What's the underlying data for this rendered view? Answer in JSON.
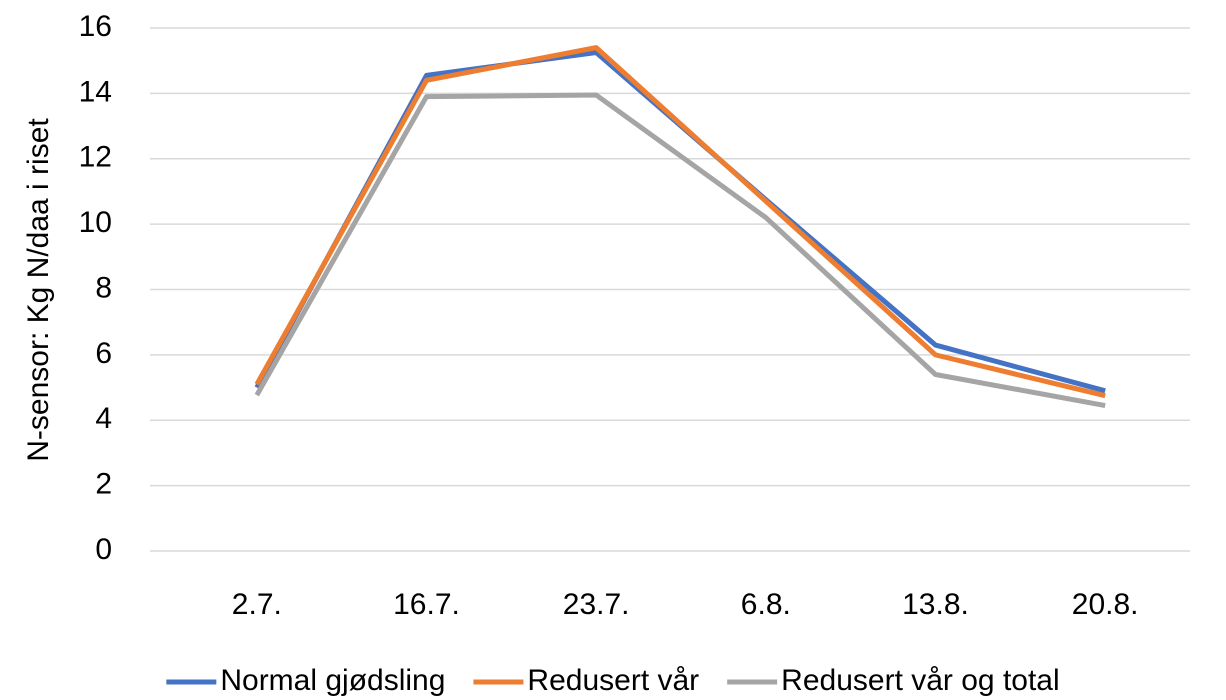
{
  "chart_data": {
    "type": "line",
    "y_label": "N-sensor:  Kg N/daa i riset",
    "categories": [
      "2.7.",
      "16.7.",
      "23.7.",
      "6.8.",
      "13.8.",
      "20.8."
    ],
    "series": [
      {
        "name": "Normal gjødsling",
        "color": "#4472c4",
        "values": [
          5.0,
          14.55,
          15.25,
          10.75,
          6.3,
          4.9
        ]
      },
      {
        "name": "Redusert vår",
        "color": "#ed7d31",
        "values": [
          5.1,
          14.4,
          15.4,
          10.7,
          6.0,
          4.75
        ]
      },
      {
        "name": "Redusert vår og total",
        "color": "#a5a5a5",
        "values": [
          4.77,
          13.9,
          13.95,
          10.2,
          5.4,
          4.45
        ]
      }
    ],
    "ylim": [
      0,
      16
    ],
    "yticks": [
      0,
      2,
      4,
      6,
      8,
      10,
      12,
      14,
      16
    ],
    "grid": true,
    "legend": "bottom"
  }
}
